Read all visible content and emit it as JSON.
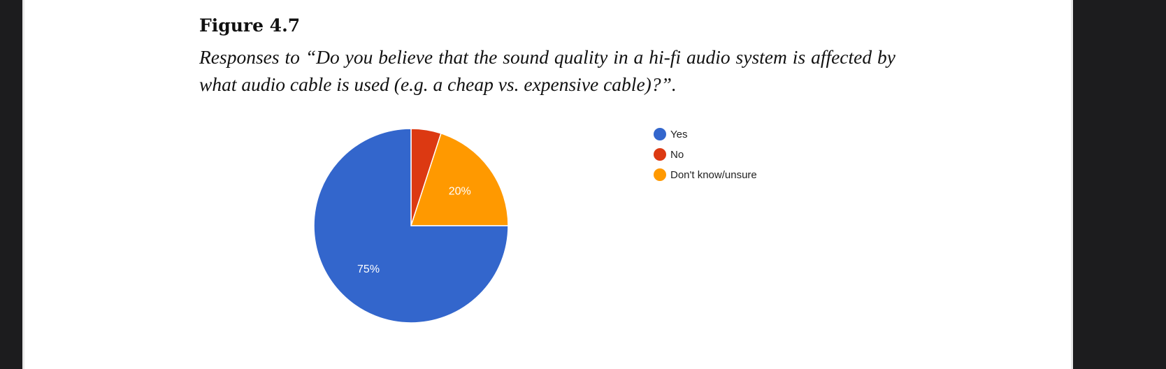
{
  "figure_label": "Figure 4.7",
  "caption": "Responses to “Do you believe that the sound quality in a hi-fi audio system is affected by what audio cable is used (e.g. a cheap vs. expensive cable)?”.",
  "chart_data": {
    "type": "pie",
    "title": "",
    "categories": [
      "Yes",
      "No",
      "Don't know/unsure"
    ],
    "values": [
      75,
      5,
      20
    ],
    "unit": "%",
    "colors": [
      "#3366cc",
      "#dc3912",
      "#ff9900"
    ],
    "data_labels": [
      "75%",
      "",
      "20%"
    ],
    "legend_position": "right"
  }
}
